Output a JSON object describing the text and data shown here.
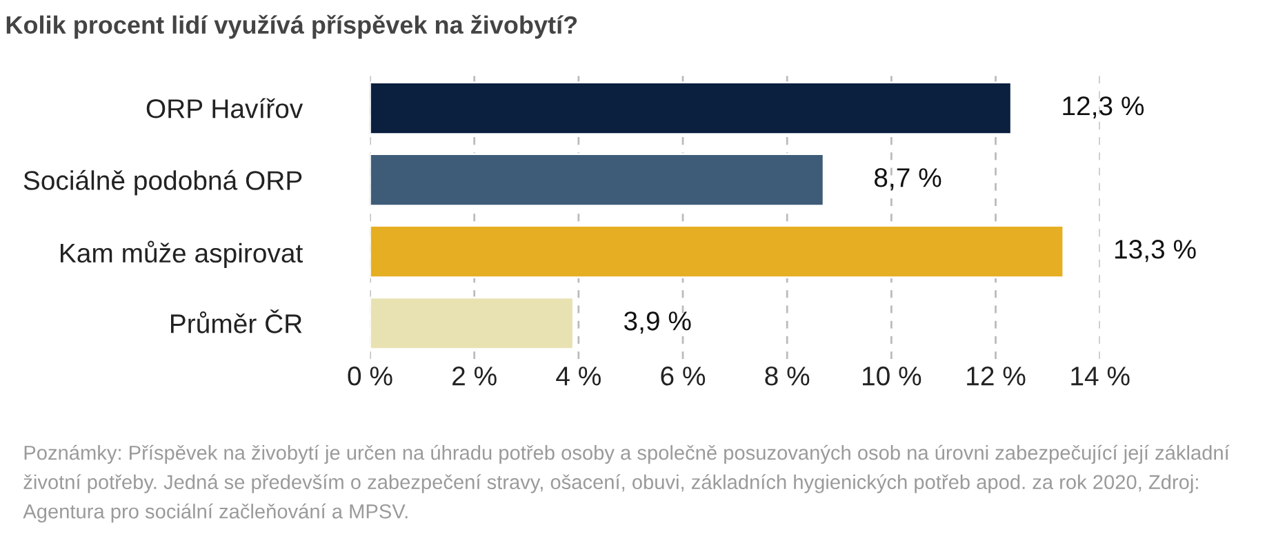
{
  "chart_data": {
    "type": "bar",
    "orientation": "horizontal",
    "title": "Kolik procent lidí využívá příspěvek na živobytí?",
    "categories": [
      "ORP Havířov",
      "Sociálně podobná ORP",
      "Kam může aspirovat",
      "Průměr ČR"
    ],
    "values": [
      12.3,
      8.7,
      13.3,
      3.9
    ],
    "colors": [
      "#0b1f3f",
      "#3e5c78",
      "#e6ae22",
      "#e8e2b3"
    ],
    "value_labels": [
      "12,3 %",
      "8,7 %",
      "13,3 %",
      "3,9 %"
    ],
    "xlim": [
      0,
      14
    ],
    "xticks": [
      {
        "value": 0,
        "label": "0 %"
      },
      {
        "value": 2,
        "label": "2 %"
      },
      {
        "value": 4,
        "label": "4 %"
      },
      {
        "value": 6,
        "label": "6 %"
      },
      {
        "value": 8,
        "label": "8 %"
      },
      {
        "value": 10,
        "label": "10 %"
      },
      {
        "value": 12,
        "label": "12 %"
      },
      {
        "value": 14,
        "label": "14 %"
      }
    ],
    "grid": "x",
    "annotations": [
      "Poznámky: Příspěvek na živobytí je určen na úhradu potřeb osoby a společně posuzovaných osob na úrovni zabezpečující její základní životní potřeby. Jedná se především o zabezpečení stravy, ošacení, obuvi, základních hygienických potřeb apod. za rok 2020, Zdroj: Agentura pro sociální začleňování a MPSV."
    ]
  }
}
